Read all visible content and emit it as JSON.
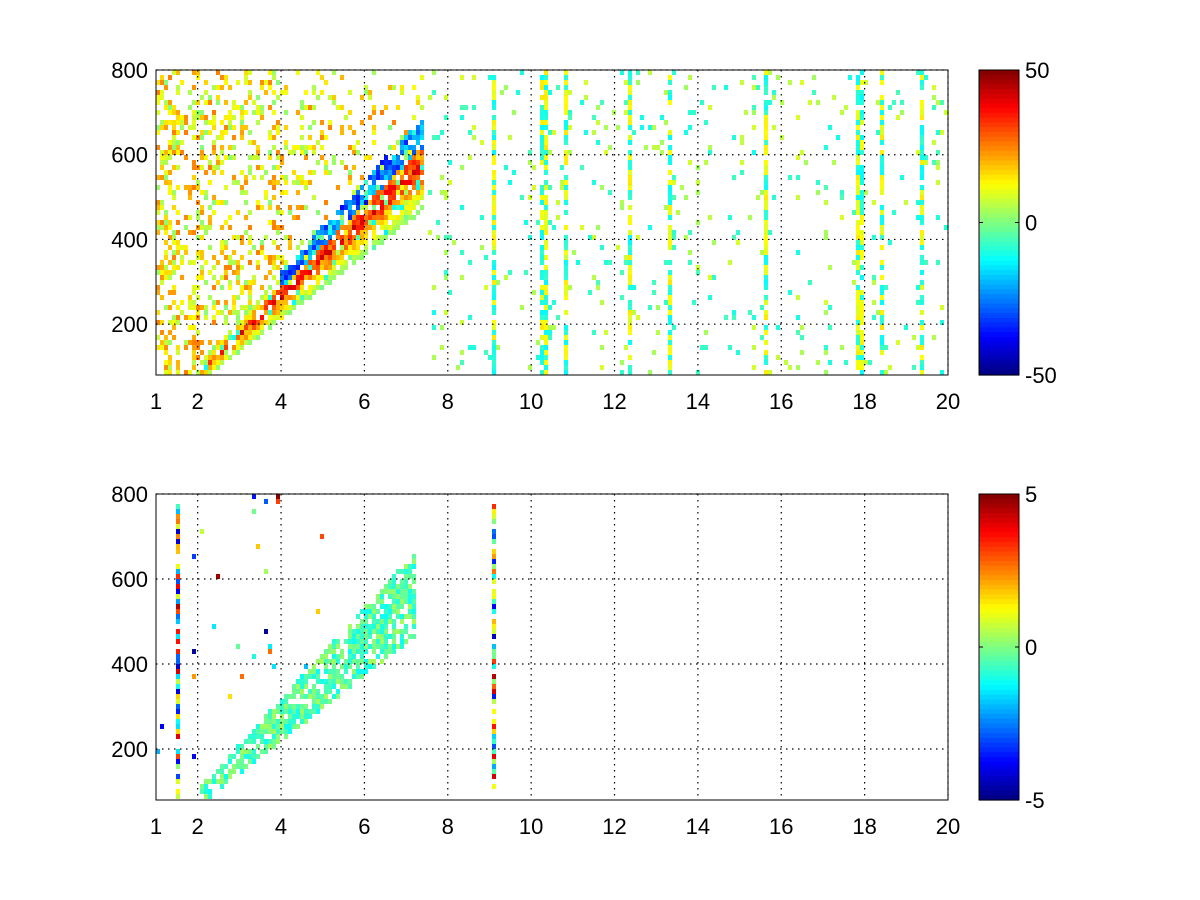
{
  "chart_data": [
    {
      "type": "heatmap",
      "title": "",
      "xlabel": "",
      "ylabel": "",
      "xlim": [
        1,
        20
      ],
      "ylim": [
        80,
        800
      ],
      "xticks": [
        1,
        2,
        4,
        6,
        8,
        10,
        12,
        14,
        16,
        18,
        20
      ],
      "yticks": [
        200,
        400,
        600,
        800
      ],
      "grid": true,
      "colormap": "jet",
      "clim": [
        -50,
        50
      ],
      "colorbar_ticks": [
        50,
        0,
        -50
      ],
      "colorbar_placement": "right",
      "features": {
        "band": {
          "start": [
            2.2,
            100
          ],
          "end": [
            7.2,
            560
          ],
          "min_width": 25,
          "max_width": 110
        },
        "band_peak_value": 38,
        "band_upper_edge_value": -38,
        "vertical_stripes_x": [
          9.1,
          10.3,
          10.8,
          12.4,
          13.3,
          15.6,
          17.9,
          18.4,
          19.4
        ]
      }
    },
    {
      "type": "heatmap",
      "title": "",
      "xlabel": "",
      "ylabel": "",
      "xlim": [
        1,
        20
      ],
      "ylim": [
        80,
        800
      ],
      "xticks": [
        1,
        2,
        4,
        6,
        8,
        10,
        12,
        14,
        16,
        18,
        20
      ],
      "yticks": [
        200,
        400,
        600,
        800
      ],
      "grid": true,
      "colormap": "jet",
      "clim": [
        -5,
        5
      ],
      "colorbar_ticks": [
        5,
        0,
        -5
      ],
      "colorbar_placement": "right",
      "features": {
        "band": {
          "start": [
            2.2,
            100
          ],
          "end": [
            7.2,
            560
          ],
          "min_width": 25,
          "max_width": 110
        },
        "band_typical_value": -0.4,
        "vertical_stripes_x": [
          1.5,
          9.1
        ]
      }
    }
  ]
}
